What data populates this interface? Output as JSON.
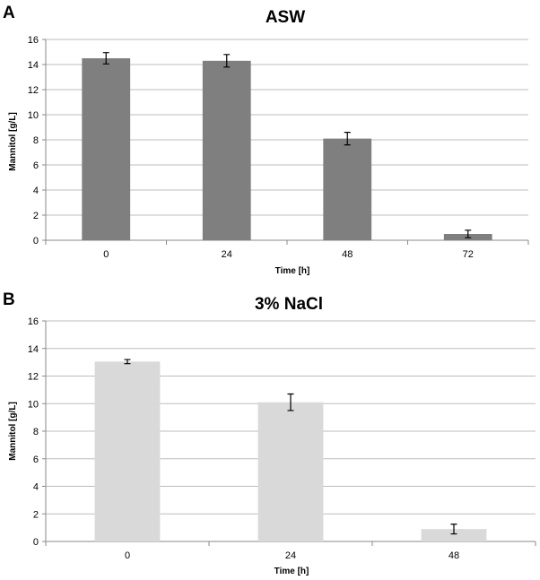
{
  "chart_data": [
    {
      "type": "bar",
      "panel": "A",
      "title": "ASW",
      "xlabel": "Time [h]",
      "ylabel": "Mannitol [g/L]",
      "categories": [
        "0",
        "24",
        "48",
        "72"
      ],
      "values": [
        14.5,
        14.3,
        8.1,
        0.5
      ],
      "errors": [
        0.45,
        0.5,
        0.5,
        0.3
      ],
      "ylim": [
        0,
        16
      ],
      "yticks": [
        "0",
        "2",
        "4",
        "6",
        "8",
        "10",
        "12",
        "14",
        "16"
      ],
      "bar_color": "#7f7f7f",
      "grid": true,
      "legend": "none"
    },
    {
      "type": "bar",
      "panel": "B",
      "title": "3% NaCl",
      "xlabel": "Time [h]",
      "ylabel": "Mannitol [g/L]",
      "categories": [
        "0",
        "24",
        "48"
      ],
      "values": [
        13.05,
        10.1,
        0.9
      ],
      "errors": [
        0.15,
        0.6,
        0.35
      ],
      "ylim": [
        0,
        16
      ],
      "yticks": [
        "0",
        "2",
        "4",
        "6",
        "8",
        "10",
        "12",
        "14",
        "16"
      ],
      "bar_color": "#d9d9d9",
      "grid": true,
      "legend": "none"
    }
  ]
}
